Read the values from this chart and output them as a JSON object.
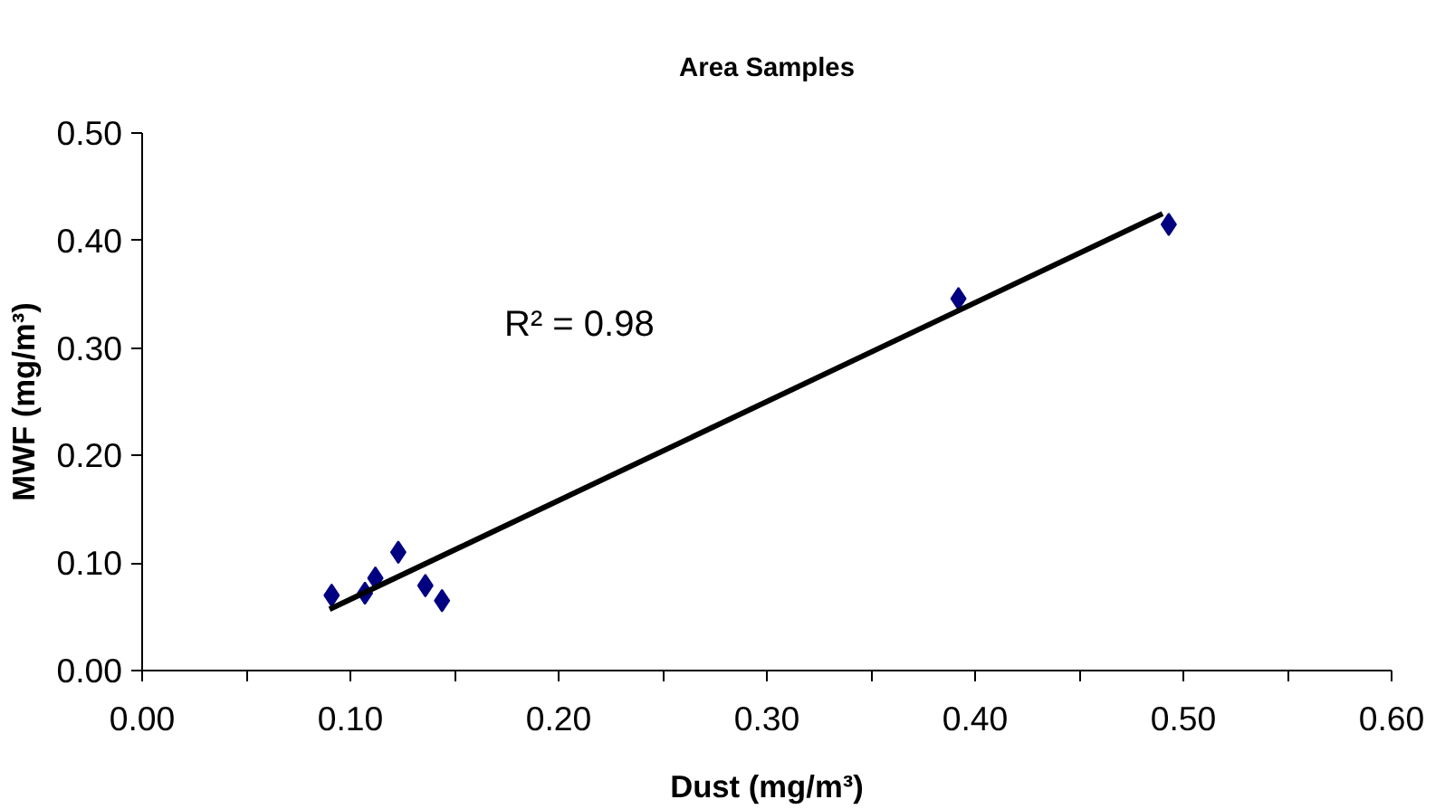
{
  "chart_data": {
    "type": "scatter",
    "title": "Area Samples",
    "xlabel": "Dust (mg/m³)",
    "ylabel": "MWF (mg/m³)",
    "xlim": [
      0,
      0.6
    ],
    "ylim": [
      0,
      0.5
    ],
    "xticks": [
      {
        "value": 0,
        "label": "0.00"
      },
      {
        "value": 0.05,
        "label": null
      },
      {
        "value": 0.1,
        "label": "0.10"
      },
      {
        "value": 0.15,
        "label": null
      },
      {
        "value": 0.2,
        "label": "0.20"
      },
      {
        "value": 0.25,
        "label": null
      },
      {
        "value": 0.3,
        "label": "0.30"
      },
      {
        "value": 0.35,
        "label": null
      },
      {
        "value": 0.4,
        "label": "0.40"
      },
      {
        "value": 0.45,
        "label": null
      },
      {
        "value": 0.5,
        "label": "0.50"
      },
      {
        "value": 0.55,
        "label": null
      },
      {
        "value": 0.6,
        "label": "0.60"
      }
    ],
    "yticks": [
      {
        "value": 0,
        "label": "0.00"
      },
      {
        "value": 0.1,
        "label": "0.10"
      },
      {
        "value": 0.2,
        "label": "0.20"
      },
      {
        "value": 0.3,
        "label": "0.30"
      },
      {
        "value": 0.4,
        "label": "0.40"
      },
      {
        "value": 0.5,
        "label": "0.50"
      }
    ],
    "grid": false,
    "series": [
      {
        "marker": "diamond",
        "color": "#000080",
        "x": [
          0.091,
          0.107,
          0.112,
          0.123,
          0.136,
          0.144,
          0.392,
          0.493
        ],
        "values": [
          0.07,
          0.072,
          0.086,
          0.11,
          0.079,
          0.065,
          0.346,
          0.415
        ]
      },
      {
        "type": "line",
        "color": "#000000",
        "x": [
          0.09,
          0.49
        ],
        "values": [
          0.057,
          0.425
        ]
      }
    ],
    "annotations": [
      "R² = 0.98"
    ]
  }
}
